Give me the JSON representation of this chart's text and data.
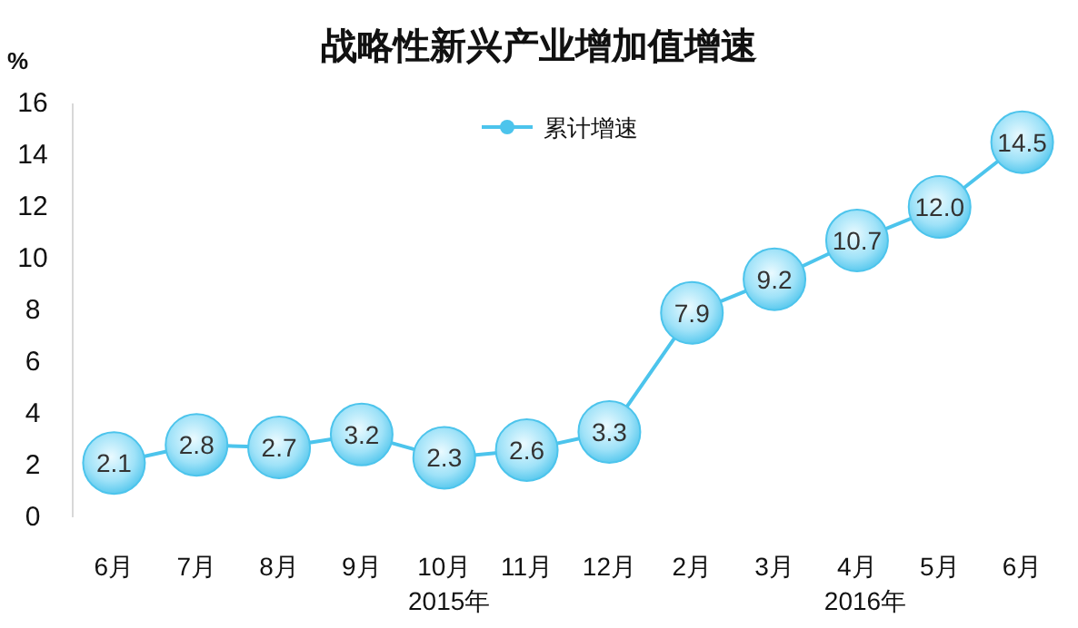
{
  "chart_data": {
    "type": "line",
    "title": "战略性新兴产业增加值增速",
    "ylabel": "%",
    "categories": [
      "6月",
      "7月",
      "8月",
      "9月",
      "10月",
      "11月",
      "12月",
      "2月",
      "3月",
      "4月",
      "5月",
      "6月"
    ],
    "series": [
      {
        "name": "累计增速",
        "color": "#4cc4ec",
        "values": [
          2.1,
          2.8,
          2.7,
          3.2,
          2.3,
          2.6,
          3.3,
          7.9,
          9.2,
          10.7,
          12.0,
          14.5
        ],
        "value_labels": [
          "2.1",
          "2.8",
          "2.7",
          "3.2",
          "2.3",
          "2.6",
          "3.3",
          "7.9",
          "9.2",
          "10.7",
          "12.0",
          "14.5"
        ]
      }
    ],
    "ylim": [
      0,
      16
    ],
    "yticks": [
      0,
      2,
      4,
      6,
      8,
      10,
      12,
      14,
      16
    ],
    "annotations": [
      "2015年",
      "2016年"
    ],
    "legend": "top",
    "marker": "circle",
    "grid": false
  }
}
